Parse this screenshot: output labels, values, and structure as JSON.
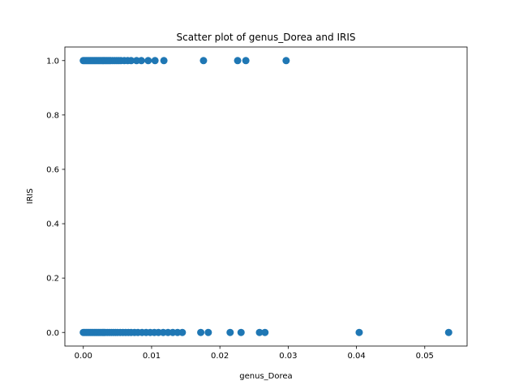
{
  "chart_data": {
    "type": "scatter",
    "title": "Scatter plot of genus_Dorea and IRIS",
    "xlabel": "genus_Dorea",
    "ylabel": "IRIS",
    "xlim": [
      -0.0027,
      0.0562
    ],
    "ylim": [
      -0.05,
      1.05
    ],
    "xticks": [
      0.0,
      0.01,
      0.02,
      0.03,
      0.04,
      0.05
    ],
    "xtick_labels": [
      "0.00",
      "0.01",
      "0.02",
      "0.03",
      "0.04",
      "0.05"
    ],
    "yticks": [
      0.0,
      0.2,
      0.4,
      0.6,
      0.8,
      1.0
    ],
    "ytick_labels": [
      "0.0",
      "0.2",
      "0.4",
      "0.6",
      "0.8",
      "1.0"
    ],
    "grid": false,
    "color": "#1f77b4",
    "series": [
      {
        "x": [
          0.0,
          0.0002,
          0.0004,
          0.0006,
          0.0008,
          0.001,
          0.0012,
          0.0014,
          0.0016,
          0.0018,
          0.002,
          0.0022,
          0.0024,
          0.0026,
          0.0028,
          0.003,
          0.0032,
          0.0034,
          0.0036,
          0.0038,
          0.004,
          0.0043,
          0.0046,
          0.0049,
          0.0052,
          0.0055,
          0.006,
          0.0065,
          0.007,
          0.0078,
          0.0085,
          0.0095,
          0.0105,
          0.0118,
          0.0176,
          0.0226,
          0.0238,
          0.0297,
          0.0,
          0.0002,
          0.0004,
          0.0006,
          0.0008,
          0.001,
          0.0012,
          0.0014,
          0.0016,
          0.0018,
          0.002,
          0.0022,
          0.0024,
          0.0026,
          0.0028,
          0.003,
          0.0032,
          0.0035,
          0.0038,
          0.0041,
          0.0044,
          0.0047,
          0.005,
          0.0054,
          0.0058,
          0.0062,
          0.0066,
          0.007,
          0.0075,
          0.008,
          0.0086,
          0.0092,
          0.0098,
          0.0104,
          0.011,
          0.0117,
          0.0124,
          0.0131,
          0.0138,
          0.0145,
          0.0172,
          0.0183,
          0.0215,
          0.0231,
          0.0258,
          0.0266,
          0.0404,
          0.0535
        ],
        "y": [
          1,
          1,
          1,
          1,
          1,
          1,
          1,
          1,
          1,
          1,
          1,
          1,
          1,
          1,
          1,
          1,
          1,
          1,
          1,
          1,
          1,
          1,
          1,
          1,
          1,
          1,
          1,
          1,
          1,
          1,
          1,
          1,
          1,
          1,
          1,
          1,
          1,
          1,
          0,
          0,
          0,
          0,
          0,
          0,
          0,
          0,
          0,
          0,
          0,
          0,
          0,
          0,
          0,
          0,
          0,
          0,
          0,
          0,
          0,
          0,
          0,
          0,
          0,
          0,
          0,
          0,
          0,
          0,
          0,
          0,
          0,
          0,
          0,
          0,
          0,
          0,
          0,
          0,
          0,
          0,
          0,
          0,
          0,
          0,
          0,
          0
        ]
      }
    ]
  }
}
